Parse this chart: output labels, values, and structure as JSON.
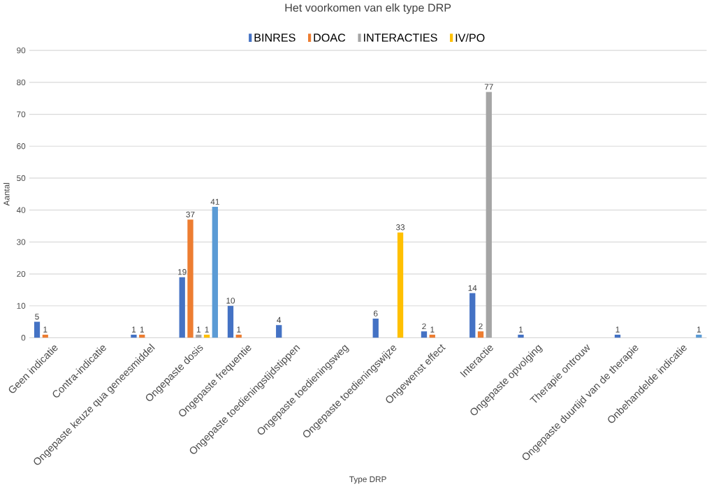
{
  "chart_data": {
    "type": "bar",
    "title": "Het voorkomen van elk type DRP",
    "xlabel": "Type DRP",
    "ylabel": "Aantal",
    "categories": [
      "Geen indicatie",
      "Contra-indicatie",
      "Ongepaste keuze qua geneesmiddel",
      "Ongepaste dosis",
      "Ongepaste frequentie",
      "Ongepaste toedieningstijdstippen",
      "Ongepaste toedieningsweg",
      "Ongepaste toedieningswijze",
      "Ongewenst effect",
      "Interactie",
      "Ongepaste opvolging",
      "Therapie ontrouw",
      "Ongepaste duurtijd van de therapie",
      "Onbehandelde indicatie"
    ],
    "series": [
      {
        "name": "BINRES",
        "color": "#4472c4",
        "values": [
          5,
          null,
          1,
          19,
          10,
          4,
          null,
          6,
          2,
          14,
          1,
          null,
          1,
          null
        ]
      },
      {
        "name": "DOAC",
        "color": "#ed7d31",
        "values": [
          1,
          null,
          1,
          37,
          1,
          null,
          null,
          null,
          1,
          2,
          null,
          null,
          null,
          null
        ]
      },
      {
        "name": "INTERACTIES",
        "color": "#a5a5a5",
        "values": [
          null,
          null,
          null,
          1,
          null,
          null,
          null,
          null,
          null,
          77,
          null,
          null,
          null,
          null
        ]
      },
      {
        "name": "IV/PO",
        "color": "#ffc000",
        "values": [
          null,
          null,
          null,
          1,
          null,
          null,
          null,
          33,
          null,
          null,
          null,
          null,
          null,
          null
        ]
      },
      {
        "color": "#5b9bd5",
        "values": [
          null,
          null,
          null,
          41,
          null,
          null,
          null,
          null,
          null,
          null,
          null,
          null,
          null,
          1
        ]
      }
    ],
    "ylim": [
      0,
      90
    ],
    "yticks": [
      0,
      10,
      20,
      30,
      40,
      50,
      60,
      70,
      80,
      90
    ],
    "grid": "y",
    "legend": "top",
    "data_labels": true
  }
}
